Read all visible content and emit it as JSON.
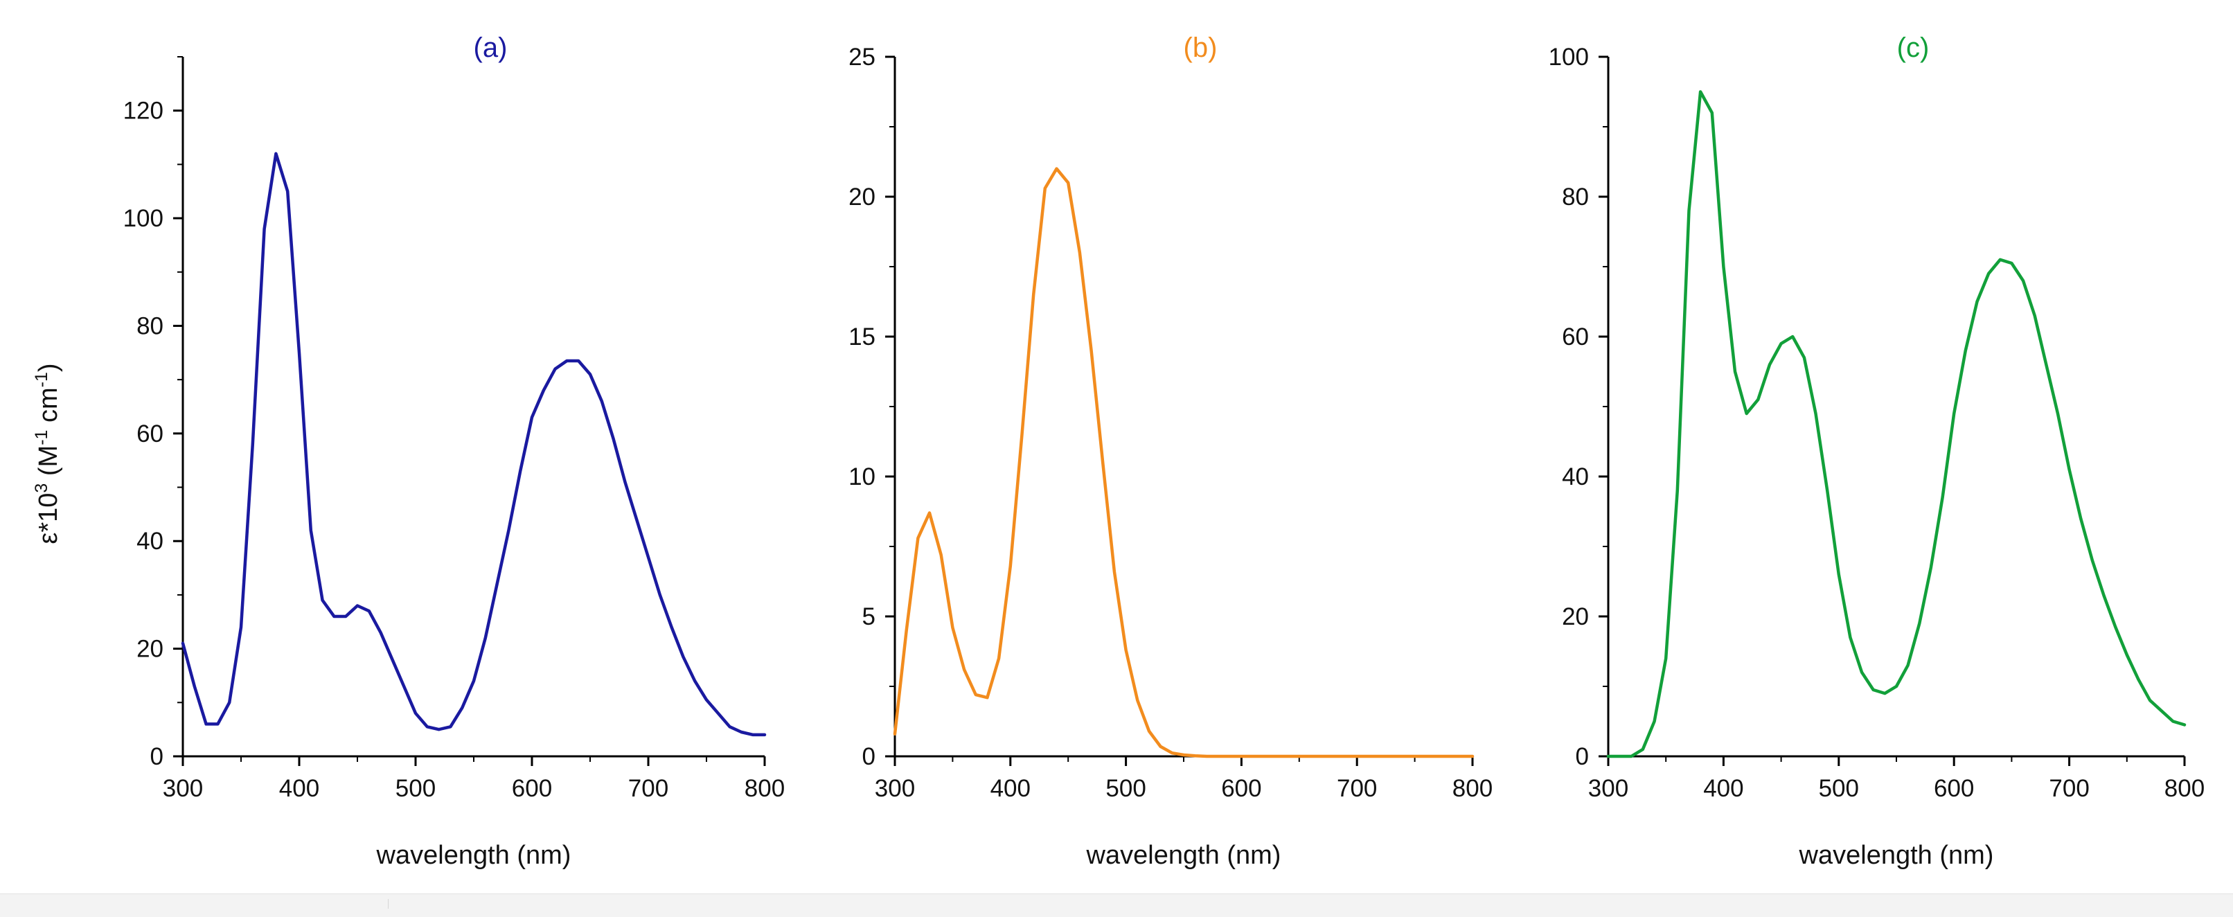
{
  "figure": {
    "ylabel": "ε*10",
    "ylabel_sup": "3",
    "ylabel_unit_open": " (M",
    "ylabel_unit_sup1": "-1",
    "ylabel_unit_mid": " cm",
    "ylabel_unit_sup2": "-1",
    "ylabel_unit_close": ")"
  },
  "chart_data": [
    {
      "type": "line",
      "title": "(a)",
      "color": "#1a1aa0",
      "xlabel": "wavelength (nm)",
      "ylabel": "ε*10^3 (M^-1 cm^-1)",
      "xlim": [
        300,
        800
      ],
      "ylim": [
        0,
        130
      ],
      "xticks": [
        300,
        400,
        500,
        600,
        700,
        800
      ],
      "yticks": [
        0,
        20,
        40,
        60,
        80,
        100,
        120
      ],
      "grid": false,
      "series": [
        {
          "name": "(a)",
          "x": [
            300,
            310,
            320,
            330,
            340,
            350,
            360,
            370,
            380,
            390,
            400,
            410,
            420,
            430,
            440,
            450,
            460,
            470,
            480,
            490,
            500,
            510,
            520,
            530,
            540,
            550,
            560,
            570,
            580,
            590,
            600,
            610,
            620,
            630,
            640,
            650,
            660,
            670,
            680,
            690,
            700,
            710,
            720,
            730,
            740,
            750,
            760,
            770,
            780,
            790,
            800
          ],
          "y": [
            21,
            13,
            6,
            6,
            10,
            24,
            58,
            98,
            112,
            105,
            75,
            42,
            29,
            26,
            26,
            28,
            27,
            23,
            18,
            13,
            8,
            5.5,
            5,
            5.5,
            9,
            14,
            22,
            32,
            42,
            53,
            63,
            68,
            72,
            73.5,
            73.5,
            71,
            66,
            59,
            51,
            44,
            37,
            30,
            24,
            18.5,
            14,
            10.5,
            8,
            5.5,
            4.5,
            4,
            4
          ]
        }
      ]
    },
    {
      "type": "line",
      "title": "(b)",
      "color": "#f28c1e",
      "xlabel": "wavelength (nm)",
      "ylabel": "",
      "xlim": [
        300,
        800
      ],
      "ylim": [
        0,
        25
      ],
      "xticks": [
        300,
        400,
        500,
        600,
        700,
        800
      ],
      "yticks": [
        0,
        5,
        10,
        15,
        20,
        25
      ],
      "grid": false,
      "series": [
        {
          "name": "(b)",
          "x": [
            300,
            310,
            320,
            330,
            340,
            350,
            360,
            370,
            380,
            390,
            400,
            410,
            420,
            430,
            440,
            450,
            460,
            470,
            480,
            490,
            500,
            510,
            520,
            530,
            540,
            550,
            560,
            570,
            580,
            600,
            650,
            700,
            750,
            800
          ],
          "y": [
            0.8,
            4.5,
            7.8,
            8.7,
            7.2,
            4.6,
            3.1,
            2.2,
            2.1,
            3.5,
            6.8,
            11.5,
            16.5,
            20.3,
            21,
            20.5,
            18,
            14.5,
            10.5,
            6.6,
            3.8,
            2.0,
            0.9,
            0.35,
            0.12,
            0.05,
            0.02,
            0,
            0,
            0,
            0,
            0,
            0,
            0
          ]
        }
      ]
    },
    {
      "type": "line",
      "title": "(c)",
      "color": "#12a03a",
      "xlabel": "wavelength (nm)",
      "ylabel": "",
      "xlim": [
        300,
        800
      ],
      "ylim": [
        0,
        100
      ],
      "xticks": [
        300,
        400,
        500,
        600,
        700,
        800
      ],
      "yticks": [
        0,
        20,
        40,
        60,
        80,
        100
      ],
      "grid": false,
      "series": [
        {
          "name": "(c)",
          "x": [
            300,
            310,
            320,
            330,
            340,
            350,
            360,
            370,
            380,
            390,
            400,
            410,
            420,
            430,
            440,
            450,
            460,
            470,
            480,
            490,
            500,
            510,
            520,
            530,
            540,
            550,
            560,
            570,
            580,
            590,
            600,
            610,
            620,
            630,
            640,
            650,
            660,
            670,
            680,
            690,
            700,
            710,
            720,
            730,
            740,
            750,
            760,
            770,
            780,
            790,
            800
          ],
          "y": [
            0,
            0,
            0,
            1,
            5,
            14,
            38,
            78,
            95,
            92,
            70,
            55,
            49,
            51,
            56,
            59,
            60,
            57,
            49,
            38,
            26,
            17,
            12,
            9.5,
            9,
            10,
            13,
            19,
            27,
            37,
            49,
            58,
            65,
            69,
            71,
            70.5,
            68,
            63,
            56,
            49,
            41,
            34,
            28,
            23,
            18.5,
            14.5,
            11,
            8,
            6.5,
            5,
            4.5
          ]
        }
      ]
    }
  ]
}
